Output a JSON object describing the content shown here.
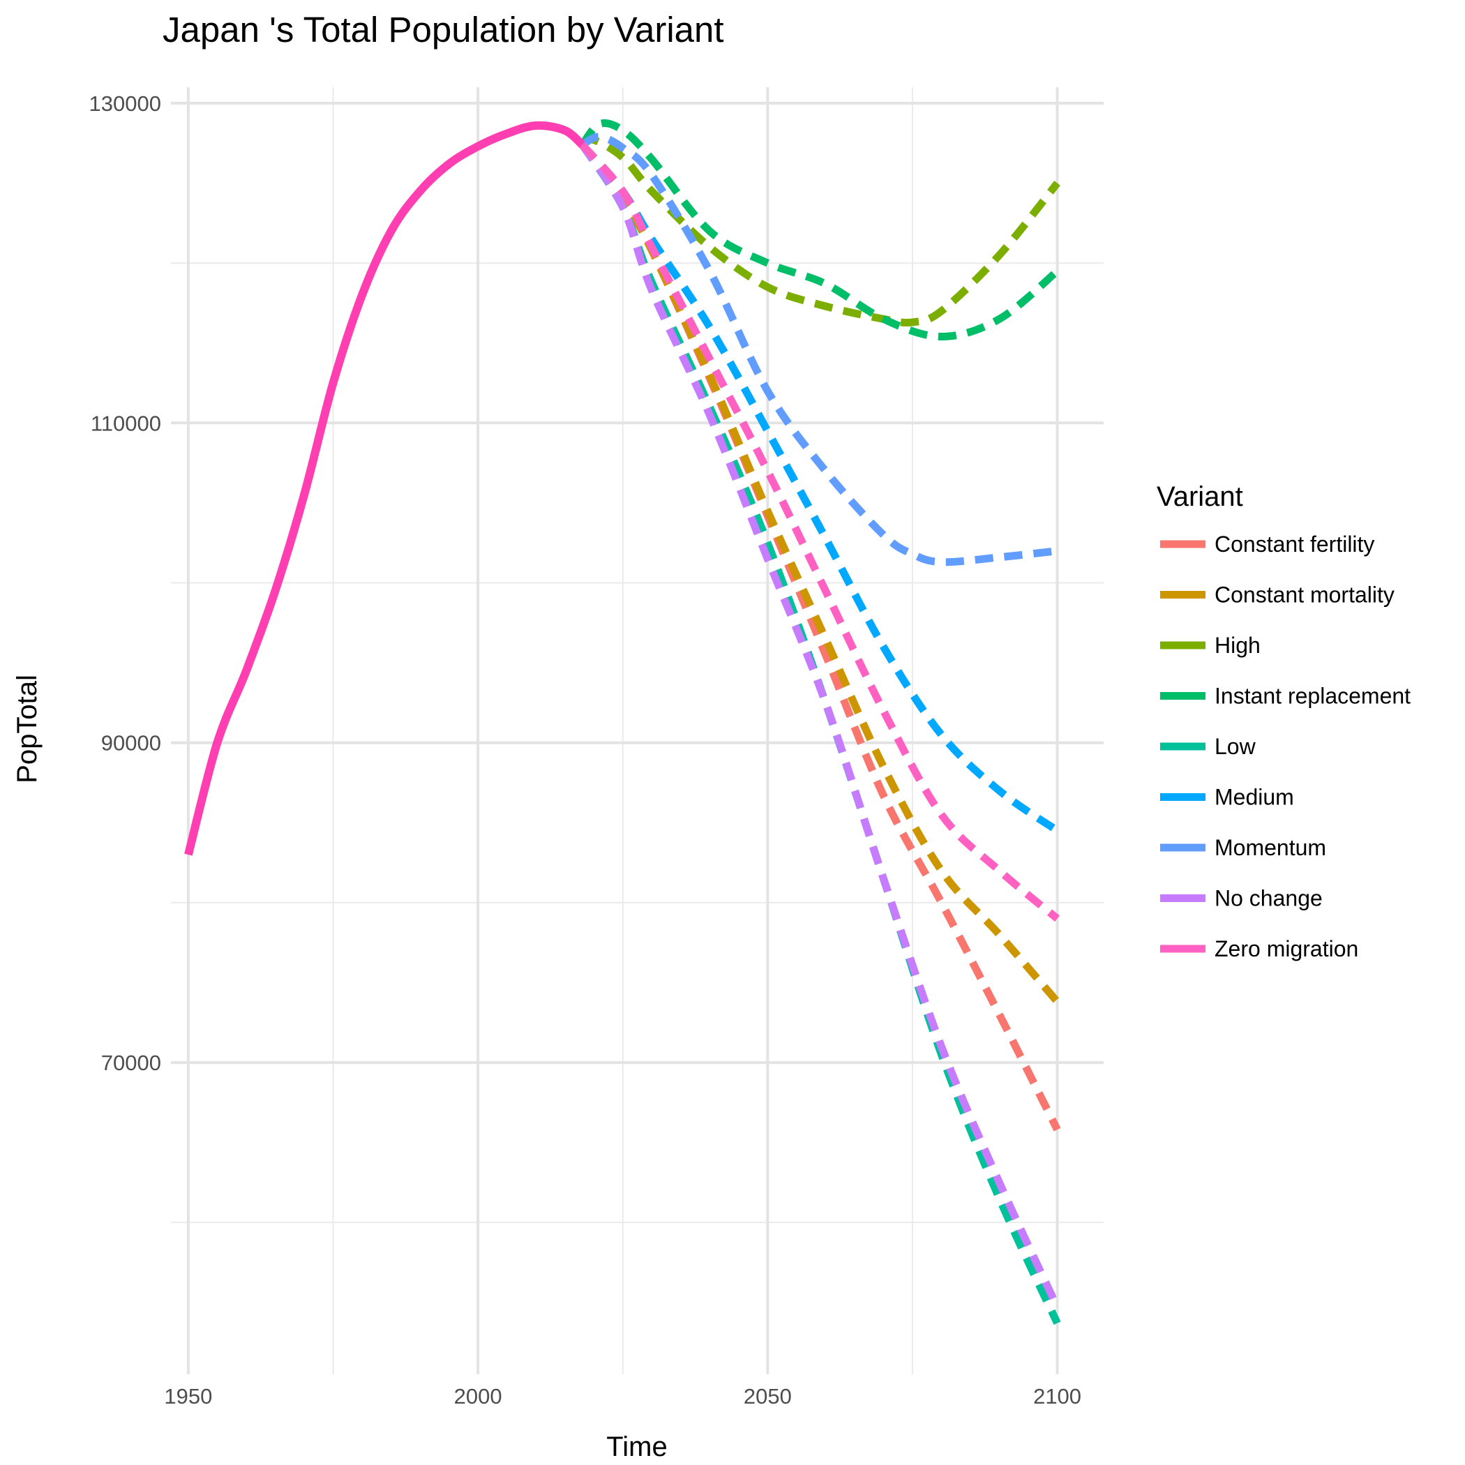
{
  "chart_data": {
    "type": "line",
    "title": "Japan 's Total Population by Variant",
    "xlabel": "Time",
    "ylabel": "PopTotal",
    "xlim": [
      1947,
      2108
    ],
    "ylim": [
      50500,
      131000
    ],
    "x_ticks": [
      1950,
      2000,
      2050,
      2100
    ],
    "x_tick_labels": [
      "1950",
      "2000",
      "2050",
      "2100"
    ],
    "y_ticks": [
      70000,
      90000,
      110000,
      130000
    ],
    "y_tick_labels": [
      "70000",
      "90000",
      "110000",
      "130000"
    ],
    "grid": true,
    "legend": {
      "title": "Variant",
      "position": "right"
    },
    "historical": {
      "color": "#FF3EB2",
      "x": [
        1950,
        1955,
        1960,
        1965,
        1970,
        1975,
        1980,
        1985,
        1990,
        1995,
        2000,
        2005,
        2010,
        2015,
        2018
      ],
      "y": [
        83000,
        90000,
        94500,
        99500,
        105500,
        112500,
        118000,
        122000,
        124500,
        126200,
        127300,
        128100,
        128600,
        128300,
        127400
      ]
    },
    "series": [
      {
        "name": "Constant fertility",
        "color": "#F8766D",
        "x": [
          2018,
          2025,
          2030,
          2040,
          2050,
          2060,
          2070,
          2080,
          2090,
          2100
        ],
        "y": [
          127400,
          124000,
          120800,
          112800,
          104200,
          95500,
          86700,
          80000,
          73000,
          65800
        ]
      },
      {
        "name": "Constant mortality",
        "color": "#CD9600",
        "x": [
          2018,
          2025,
          2030,
          2040,
          2050,
          2060,
          2070,
          2080,
          2090,
          2100
        ],
        "y": [
          127400,
          124000,
          120800,
          113000,
          104500,
          96500,
          88500,
          82000,
          78000,
          73800
        ]
      },
      {
        "name": "High",
        "color": "#7CAE00",
        "x": [
          2018,
          2020,
          2025,
          2030,
          2040,
          2050,
          2060,
          2070,
          2075,
          2080,
          2090,
          2100
        ],
        "y": [
          127400,
          127700,
          126600,
          124500,
          121000,
          118500,
          117300,
          116500,
          116300,
          117000,
          120500,
          125000
        ]
      },
      {
        "name": "Instant replacement",
        "color": "#00BE67",
        "x": [
          2018,
          2021,
          2025,
          2030,
          2040,
          2050,
          2060,
          2070,
          2080,
          2090,
          2100
        ],
        "y": [
          127400,
          128700,
          128300,
          126500,
          122000,
          120000,
          118700,
          116500,
          115400,
          116500,
          119500
        ]
      },
      {
        "name": "Low",
        "color": "#00C19A",
        "x": [
          2018,
          2025,
          2030,
          2040,
          2050,
          2060,
          2070,
          2080,
          2090,
          2100
        ],
        "y": [
          127400,
          123500,
          118800,
          111000,
          102500,
          92500,
          81500,
          70500,
          61500,
          53700
        ]
      },
      {
        "name": "Medium",
        "color": "#00A9FF",
        "x": [
          2018,
          2025,
          2030,
          2040,
          2050,
          2060,
          2070,
          2080,
          2090,
          2100
        ],
        "y": [
          127400,
          124500,
          121500,
          116000,
          109500,
          102800,
          96000,
          90500,
          87000,
          84500
        ]
      },
      {
        "name": "Momentum",
        "color": "#619CFF",
        "x": [
          2018,
          2021,
          2025,
          2030,
          2040,
          2050,
          2060,
          2070,
          2075,
          2080,
          2090,
          2100
        ],
        "y": [
          127400,
          127900,
          127200,
          125500,
          119500,
          112000,
          107000,
          103000,
          101800,
          101300,
          101600,
          102000
        ]
      },
      {
        "name": "No change",
        "color": "#C77CFF",
        "x": [
          2018,
          2025,
          2030,
          2040,
          2050,
          2060,
          2070,
          2080,
          2090,
          2100
        ],
        "y": [
          127400,
          123500,
          118300,
          110500,
          101500,
          92500,
          81500,
          71000,
          62500,
          54700
        ]
      },
      {
        "name": "Zero migration",
        "color": "#FF61C3",
        "x": [
          2018,
          2025,
          2030,
          2040,
          2050,
          2060,
          2070,
          2080,
          2090,
          2100
        ],
        "y": [
          127400,
          124500,
          121000,
          114000,
          107000,
          99500,
          92000,
          85500,
          82000,
          79000
        ]
      }
    ]
  }
}
